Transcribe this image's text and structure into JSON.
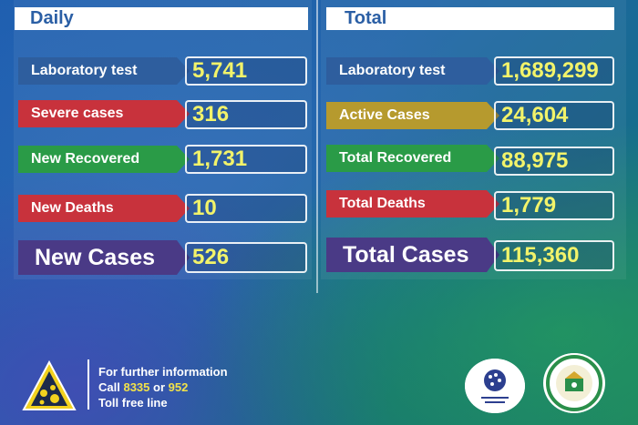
{
  "daily": {
    "title": "Daily",
    "rows": [
      {
        "label": "Laboratory test",
        "value": "5,741"
      },
      {
        "label": "Severe cases",
        "value": "316"
      },
      {
        "label": "New Recovered",
        "value": "1,731"
      },
      {
        "label": "New Deaths",
        "value": "10"
      }
    ],
    "highlight": {
      "label": "New Cases",
      "value": "526"
    }
  },
  "total": {
    "title": "Total",
    "rows": [
      {
        "label": "Laboratory test",
        "value": "1,689,299"
      },
      {
        "label": "Active Cases",
        "value": "24,604"
      },
      {
        "label": "Total Recovered",
        "value": "88,975"
      },
      {
        "label": "Total Deaths",
        "value": "1,779"
      }
    ],
    "highlight": {
      "label": "Total Cases",
      "value": "115,360"
    }
  },
  "footer": {
    "info_line1": "For further information",
    "call_prefix": "Call",
    "phone1": "8335",
    "or_text": "or",
    "phone2": "952",
    "info_line3": "Toll free line",
    "icon": "warning-triangle-icon"
  },
  "colors": {
    "blue": "#2e5e9e",
    "red": "#c8323c",
    "green": "#2a9b47",
    "purple": "#4a3a86",
    "gold": "#b69a2e",
    "value_text": "#f2f36a"
  }
}
